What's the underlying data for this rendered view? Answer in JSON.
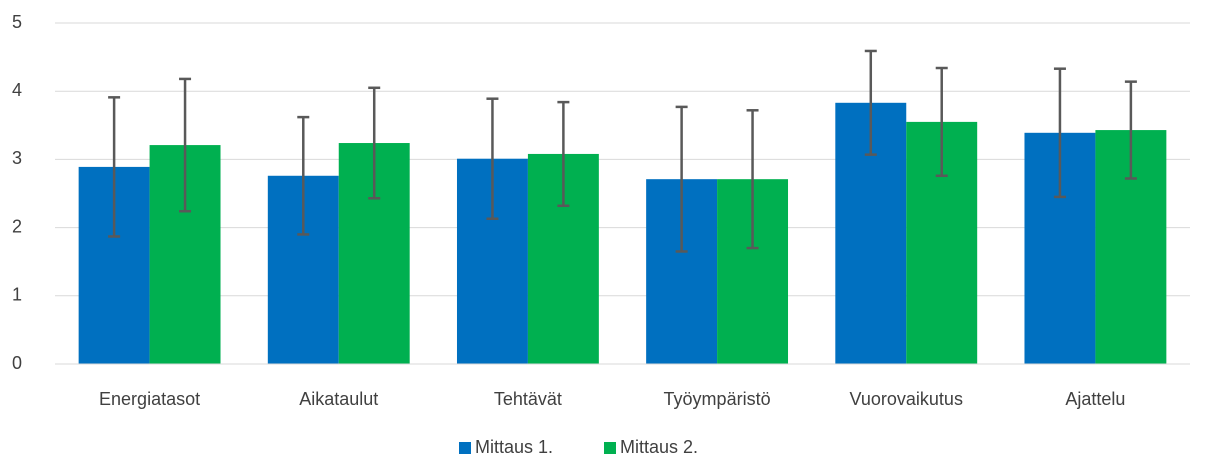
{
  "chart_data": {
    "type": "bar",
    "categories": [
      "Energiatasot",
      "Aikataulut",
      "Tehtävät",
      "Työympäristö",
      "Vuorovaikutus",
      "Ajattelu"
    ],
    "series": [
      {
        "name": "Mittaus 1.",
        "color": "#0070c0",
        "values": [
          2.89,
          2.76,
          3.01,
          2.71,
          3.83,
          3.39
        ],
        "errors": [
          1.02,
          0.86,
          0.88,
          1.06,
          0.76,
          0.94
        ]
      },
      {
        "name": "Mittaus 2.",
        "color": "#00b050",
        "values": [
          3.21,
          3.24,
          3.08,
          2.71,
          3.55,
          3.43
        ],
        "errors": [
          0.97,
          0.81,
          0.76,
          1.01,
          0.79,
          0.71
        ]
      }
    ],
    "ylim": [
      0,
      5
    ],
    "yticks": [
      0,
      1,
      2,
      3,
      4,
      5
    ],
    "grid": true,
    "legend": "bottom"
  }
}
